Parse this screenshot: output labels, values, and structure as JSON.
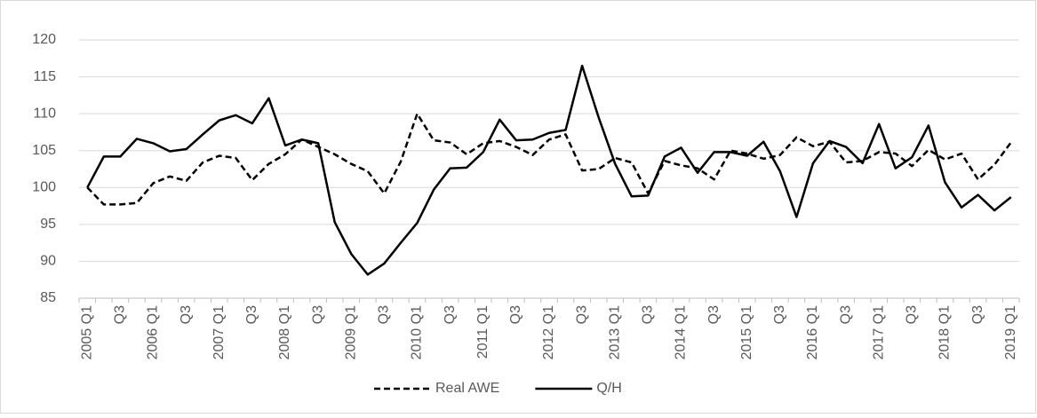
{
  "chart_data": {
    "type": "line",
    "categories": [
      "2005 Q1",
      null,
      "Q3",
      null,
      "2006 Q1",
      null,
      "Q3",
      null,
      "2007 Q1",
      null,
      "Q3",
      null,
      "2008 Q1",
      null,
      "Q3",
      null,
      "2009 Q1",
      null,
      "Q3",
      null,
      "2010 Q1",
      null,
      "Q3",
      null,
      "2011 Q1",
      null,
      "Q3",
      null,
      "2012 Q1",
      null,
      "Q3",
      null,
      "2013 Q1",
      null,
      "Q3",
      null,
      "2014 Q1",
      null,
      "Q3",
      null,
      "2015 Q1",
      null,
      "Q3",
      null,
      "2016 Q1",
      null,
      "Q3",
      null,
      "2017 Q1",
      null,
      "Q3",
      null,
      "2018 Q1",
      null,
      "Q3",
      null,
      "2019 Q1"
    ],
    "series": [
      {
        "name": "Real AWE",
        "color": "#000000",
        "dash": true,
        "values": [
          100,
          97.7,
          97.7,
          97.9,
          100.6,
          101.5,
          100.9,
          103.4,
          104.3,
          104,
          101,
          103.2,
          104.5,
          106.5,
          105.5,
          104.5,
          103.2,
          102.2,
          99.2,
          103.5,
          110,
          106.4,
          106.1,
          104.5,
          106,
          106.3,
          105.5,
          104.4,
          106.5,
          107.2,
          102.3,
          102.5,
          104,
          103.4,
          99.2,
          103.6,
          103,
          102.6,
          101.1,
          105,
          104.6,
          103.9,
          104.4,
          106.8,
          105.6,
          106.2,
          103.4,
          103.6,
          104.8,
          104.6,
          102.9,
          105.1,
          103.8,
          104.6,
          101.1,
          103.1,
          106.1
        ]
      },
      {
        "name": "Q/H",
        "color": "#000000",
        "dash": false,
        "values": [
          100,
          104.2,
          104.2,
          106.6,
          106,
          104.9,
          105.2,
          107.2,
          109.1,
          109.8,
          108.7,
          112.1,
          105.7,
          106.5,
          106,
          95.3,
          91,
          88.2,
          89.7,
          92.5,
          95.2,
          99.7,
          102.6,
          102.7,
          104.8,
          109.2,
          106.4,
          106.5,
          107.4,
          107.8,
          116.5,
          109.5,
          103.2,
          98.8,
          98.9,
          104.2,
          105.4,
          102,
          104.8,
          104.8,
          104.3,
          106.2,
          102.2,
          96,
          103.3,
          106.3,
          105.5,
          103.3,
          108.6,
          102.6,
          104.1,
          108.4,
          100.7,
          97.3,
          99,
          96.9,
          98.7
        ]
      }
    ],
    "ylim": [
      85,
      120
    ],
    "yticks": [
      85,
      90,
      95,
      100,
      105,
      110,
      115,
      120
    ],
    "grid": true,
    "legend": "bottom"
  }
}
